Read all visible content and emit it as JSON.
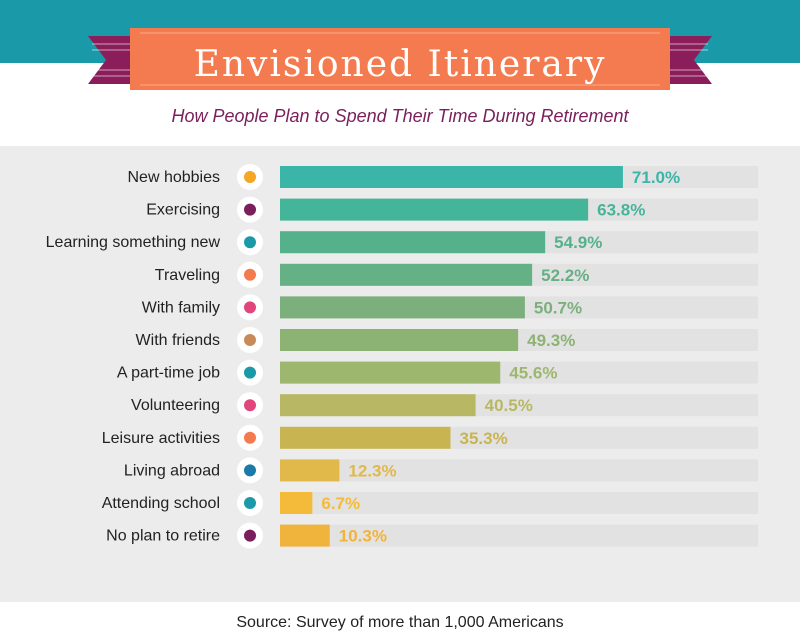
{
  "header": {
    "title": "Envisioned Itinerary",
    "subtitle": "How People Plan to Spend Their Time During Retirement"
  },
  "footer": {
    "source": "Source: Survey of more than 1,000 Americans"
  },
  "colors": {
    "top_band": "#1a9aa8",
    "banner": "#f47b4f",
    "banner_tail": "#8b1d5a",
    "panel": "#ececec",
    "track": "#e2e2e2",
    "label_text": "#222222"
  },
  "chart_data": {
    "type": "bar",
    "orientation": "horizontal",
    "title": "Envisioned Itinerary",
    "subtitle": "How People Plan to Spend Their Time During Retirement",
    "unit": "%",
    "xlim": [
      0,
      100
    ],
    "grid": false,
    "categories": [
      "New hobbies",
      "Exercising",
      "Learning something new",
      "Traveling",
      "With family",
      "With friends",
      "A part-time job",
      "Volunteering",
      "Leisure activities",
      "Living abroad",
      "Attending school",
      "No plan to retire"
    ],
    "values": [
      71.0,
      63.8,
      54.9,
      52.2,
      50.7,
      49.3,
      45.6,
      40.5,
      35.3,
      12.3,
      6.7,
      10.3
    ],
    "value_labels": [
      "71.0%",
      "63.8%",
      "54.9%",
      "52.2%",
      "50.7%",
      "49.3%",
      "45.6%",
      "40.5%",
      "35.3%",
      "12.3%",
      "6.7%",
      "10.3%"
    ],
    "bar_colors": [
      "#3bb5a8",
      "#45b59a",
      "#55b18c",
      "#66b085",
      "#7bb07c",
      "#8db374",
      "#9db76e",
      "#b8b864",
      "#c9b452",
      "#e0b94a",
      "#f4bb3a",
      "#f0b43c"
    ],
    "icons": [
      "star-icon",
      "exercise-icon",
      "notebook-icon",
      "map-pin-icon",
      "family-hands-icon",
      "friends-fist-icon",
      "clock-person-icon",
      "volunteer-heart-hand-icon",
      "theater-masks-icon",
      "globe-pin-icon",
      "school-bus-icon",
      "person-suit-icon"
    ],
    "icon_colors": [
      "#f5a623",
      "#7a1f5c",
      "#1a9aa8",
      "#f47b4f",
      "#e0457b",
      "#c98a5a",
      "#1a9aa8",
      "#e0457b",
      "#f47b4f",
      "#1a7aa8",
      "#1a9aa8",
      "#7a1f5c"
    ]
  }
}
